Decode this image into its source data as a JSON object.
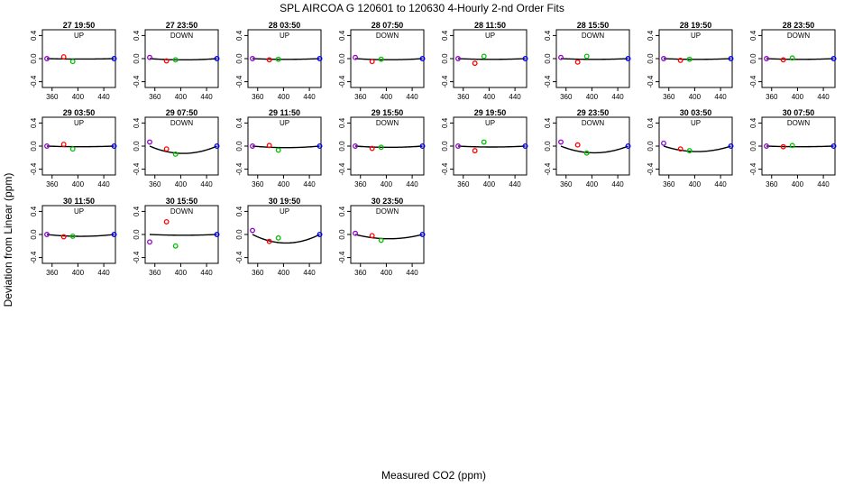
{
  "chart_data": {
    "type": "scatter",
    "title": "SPL   AIRCOA G   120601 to 120630   4-Hourly 2-nd Order Fits",
    "xlabel": "Measured CO2 (ppm)",
    "ylabel": "Deviation from Linear (ppm)",
    "xlim": [
      345,
      458
    ],
    "ylim": [
      -0.5,
      0.5
    ],
    "xticks": [
      360,
      400,
      440
    ],
    "yticks": [
      -0.4,
      0.0,
      0.4
    ],
    "xtick_labels": [
      "360",
      "400",
      "440"
    ],
    "ytick_labels": [
      "-0.4",
      "0.0",
      "0.4"
    ],
    "point_colors": [
      "#9400d3",
      "#ff0000",
      "#00c000",
      "#0000ff"
    ],
    "point_x": [
      352,
      378,
      392,
      456
    ],
    "curve_color": "#000000",
    "panels": [
      {
        "label": "27 19:50",
        "direction": "UP",
        "points": [
          0.0,
          0.03,
          -0.05,
          0.0
        ],
        "curve": [
          0.0,
          -0.005,
          -0.007,
          0.0
        ]
      },
      {
        "label": "27 23:50",
        "direction": "DOWN",
        "points": [
          0.02,
          -0.04,
          -0.02,
          0.0
        ],
        "curve": [
          0.0,
          -0.015,
          -0.02,
          0.0
        ]
      },
      {
        "label": "28 03:50",
        "direction": "UP",
        "points": [
          0.0,
          -0.02,
          -0.01,
          0.0
        ],
        "curve": [
          0.0,
          -0.01,
          -0.012,
          0.0
        ]
      },
      {
        "label": "28 07:50",
        "direction": "DOWN",
        "points": [
          0.02,
          -0.05,
          -0.01,
          0.0
        ],
        "curve": [
          0.0,
          -0.015,
          -0.018,
          0.0
        ]
      },
      {
        "label": "28 11:50",
        "direction": "UP",
        "points": [
          0.0,
          -0.08,
          0.04,
          0.0
        ],
        "curve": [
          0.0,
          -0.01,
          -0.012,
          0.0
        ]
      },
      {
        "label": "28 15:50",
        "direction": "DOWN",
        "points": [
          0.02,
          -0.06,
          0.04,
          0.0
        ],
        "curve": [
          0.0,
          -0.01,
          -0.012,
          0.0
        ]
      },
      {
        "label": "28 19:50",
        "direction": "UP",
        "points": [
          0.0,
          -0.03,
          -0.01,
          0.0
        ],
        "curve": [
          0.0,
          -0.01,
          -0.012,
          0.0
        ]
      },
      {
        "label": "28 23:50",
        "direction": "DOWN",
        "points": [
          0.0,
          -0.02,
          0.01,
          0.0
        ],
        "curve": [
          0.0,
          -0.01,
          -0.012,
          0.0
        ]
      },
      {
        "label": "29 03:50",
        "direction": "UP",
        "points": [
          0.0,
          0.03,
          -0.05,
          0.0
        ],
        "curve": [
          0.0,
          -0.008,
          -0.01,
          0.0
        ]
      },
      {
        "label": "29 07:50",
        "direction": "DOWN",
        "points": [
          0.07,
          -0.05,
          -0.14,
          0.0
        ],
        "curve": [
          0.0,
          -0.1,
          -0.12,
          0.0
        ]
      },
      {
        "label": "29 11:50",
        "direction": "UP",
        "points": [
          0.0,
          0.01,
          -0.07,
          0.0
        ],
        "curve": [
          0.0,
          -0.02,
          -0.025,
          0.0
        ]
      },
      {
        "label": "29 15:50",
        "direction": "DOWN",
        "points": [
          0.0,
          -0.04,
          -0.02,
          0.0
        ],
        "curve": [
          0.0,
          -0.015,
          -0.02,
          0.0
        ]
      },
      {
        "label": "29 19:50",
        "direction": "UP",
        "points": [
          0.0,
          -0.08,
          0.07,
          0.0
        ],
        "curve": [
          0.0,
          -0.015,
          -0.015,
          0.0
        ]
      },
      {
        "label": "29 23:50",
        "direction": "DOWN",
        "points": [
          0.07,
          0.02,
          -0.12,
          0.0
        ],
        "curve": [
          0.0,
          -0.09,
          -0.11,
          0.0
        ]
      },
      {
        "label": "30 03:50",
        "direction": "UP",
        "points": [
          0.05,
          -0.05,
          -0.08,
          0.0
        ],
        "curve": [
          0.0,
          -0.07,
          -0.09,
          0.0
        ]
      },
      {
        "label": "30 07:50",
        "direction": "DOWN",
        "points": [
          0.0,
          -0.01,
          0.01,
          0.0
        ],
        "curve": [
          0.0,
          -0.008,
          -0.01,
          0.0
        ]
      },
      {
        "label": "30 11:50",
        "direction": "UP",
        "points": [
          0.0,
          -0.04,
          -0.03,
          0.0
        ],
        "curve": [
          0.0,
          -0.025,
          -0.03,
          0.0
        ]
      },
      {
        "label": "30 15:50",
        "direction": "DOWN",
        "points": [
          -0.13,
          0.22,
          -0.2,
          0.0
        ],
        "curve": [
          0.0,
          -0.01,
          -0.012,
          0.0
        ]
      },
      {
        "label": "30 19:50",
        "direction": "UP",
        "points": [
          0.07,
          -0.12,
          -0.06,
          0.0
        ],
        "curve": [
          0.0,
          -0.12,
          -0.14,
          0.0
        ]
      },
      {
        "label": "30 23:50",
        "direction": "DOWN",
        "points": [
          0.02,
          -0.02,
          -0.1,
          0.0
        ],
        "curve": [
          0.0,
          -0.06,
          -0.07,
          0.0
        ]
      }
    ]
  }
}
